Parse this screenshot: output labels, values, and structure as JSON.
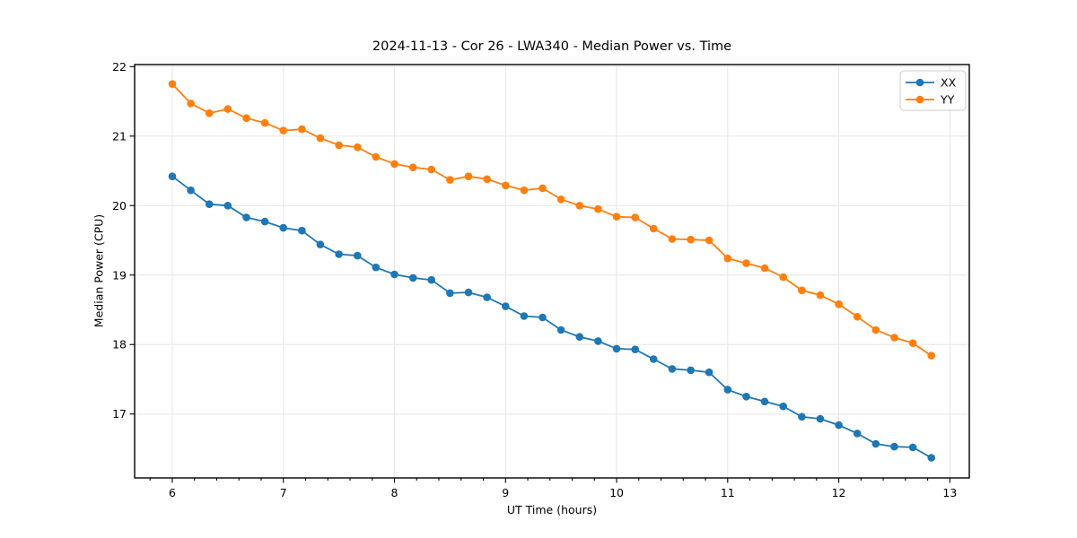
{
  "chart_data": {
    "type": "line",
    "title": "2024-11-13 - Cor 26 - LWA340 - Median Power vs. Time",
    "xlabel": "UT Time (hours)",
    "ylabel": "Median Power (CPU)",
    "xlim": [
      5.661,
      13.175
    ],
    "ylim": [
      16.08,
      22.03
    ],
    "x_major_ticks": [
      6,
      7,
      8,
      9,
      10,
      11,
      12,
      13
    ],
    "x_minor_step": 0.2,
    "y_major_ticks": [
      17,
      18,
      19,
      20,
      21,
      22
    ],
    "grid": true,
    "grid_color": "#e6e6e6",
    "legend_position": "upper right",
    "marker": "circle",
    "x": [
      6.0,
      6.167,
      6.333,
      6.5,
      6.667,
      6.833,
      7.0,
      7.167,
      7.333,
      7.5,
      7.667,
      7.833,
      8.0,
      8.167,
      8.333,
      8.5,
      8.667,
      8.833,
      9.0,
      9.167,
      9.333,
      9.5,
      9.667,
      9.833,
      10.0,
      10.167,
      10.333,
      10.5,
      10.667,
      10.833,
      11.0,
      11.167,
      11.333,
      11.5,
      11.667,
      11.833,
      12.0,
      12.167,
      12.333,
      12.5,
      12.667,
      12.833
    ],
    "series": [
      {
        "name": "XX",
        "color": "#1f77b4",
        "values": [
          20.42,
          20.22,
          20.02,
          20.0,
          19.83,
          19.77,
          19.68,
          19.64,
          19.44,
          19.3,
          19.28,
          19.11,
          19.01,
          18.96,
          18.93,
          18.74,
          18.75,
          18.68,
          18.55,
          18.41,
          18.39,
          18.21,
          18.11,
          18.05,
          17.94,
          17.93,
          17.79,
          17.65,
          17.63,
          17.6,
          17.35,
          17.25,
          17.18,
          17.11,
          16.96,
          16.93,
          16.84,
          16.72,
          16.57,
          16.53,
          16.52,
          16.37
        ]
      },
      {
        "name": "YY",
        "color": "#ff7f0e",
        "values": [
          21.75,
          21.47,
          21.33,
          21.39,
          21.26,
          21.19,
          21.08,
          21.1,
          20.97,
          20.87,
          20.84,
          20.7,
          20.6,
          20.55,
          20.52,
          20.37,
          20.42,
          20.38,
          20.29,
          20.22,
          20.25,
          20.09,
          20.0,
          19.95,
          19.84,
          19.83,
          19.67,
          19.52,
          19.51,
          19.5,
          19.24,
          19.17,
          19.1,
          18.97,
          18.78,
          18.71,
          18.58,
          18.4,
          18.21,
          18.1,
          18.02,
          17.84
        ]
      }
    ]
  }
}
